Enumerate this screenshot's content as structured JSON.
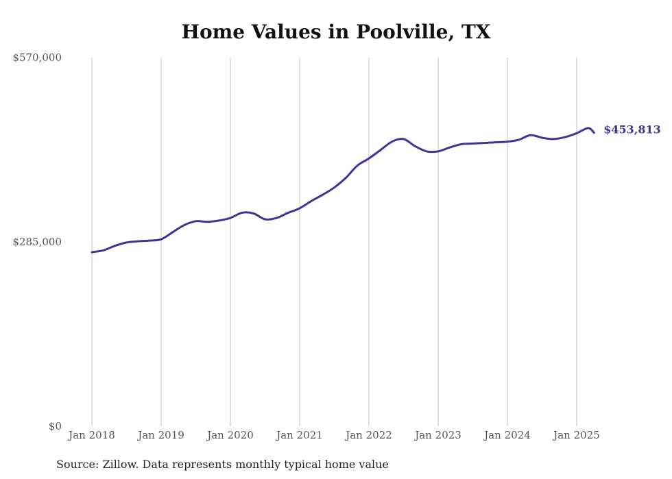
{
  "chart_data": {
    "type": "line",
    "title": "Home Values in Poolville, TX",
    "source": "Source: Zillow. Data represents monthly typical home value",
    "xlabel": "",
    "ylabel": "",
    "ylim": [
      0,
      570000
    ],
    "yticks": [
      {
        "value": 0,
        "label": "$0"
      },
      {
        "value": 285000,
        "label": "$285,000"
      },
      {
        "value": 570000,
        "label": "$570,000"
      }
    ],
    "xticks": [
      {
        "value": "2018-01",
        "label": "Jan 2018"
      },
      {
        "value": "2019-01",
        "label": "Jan 2019"
      },
      {
        "value": "2020-01",
        "label": "Jan 2020"
      },
      {
        "value": "2021-01",
        "label": "Jan 2021"
      },
      {
        "value": "2022-01",
        "label": "Jan 2022"
      },
      {
        "value": "2023-01",
        "label": "Jan 2023"
      },
      {
        "value": "2024-01",
        "label": "Jan 2024"
      },
      {
        "value": "2025-01",
        "label": "Jan 2025"
      }
    ],
    "grid": {
      "vertical": true,
      "horizontal": false
    },
    "line_color": "#3d3595",
    "end_label": "$453,813",
    "series": [
      {
        "x": [
          "2018-01",
          "2018-03",
          "2018-05",
          "2018-07",
          "2018-09",
          "2018-11",
          "2019-01",
          "2019-03",
          "2019-05",
          "2019-07",
          "2019-09",
          "2019-11",
          "2020-01",
          "2020-03",
          "2020-05",
          "2020-07",
          "2020-09",
          "2020-11",
          "2021-01",
          "2021-03",
          "2021-05",
          "2021-07",
          "2021-09",
          "2021-11",
          "2022-01",
          "2022-03",
          "2022-05",
          "2022-07",
          "2022-09",
          "2022-11",
          "2023-01",
          "2023-03",
          "2023-05",
          "2023-07",
          "2023-09",
          "2023-11",
          "2024-01",
          "2024-03",
          "2024-05",
          "2024-07",
          "2024-09",
          "2024-11",
          "2025-01",
          "2025-03",
          "2025-04"
        ],
        "values": [
          269000,
          272000,
          279000,
          284000,
          286000,
          287000,
          289000,
          300000,
          311000,
          317000,
          316000,
          318000,
          322000,
          330000,
          329000,
          320000,
          322000,
          330000,
          337000,
          348000,
          358000,
          369000,
          384000,
          403000,
          414000,
          427000,
          440000,
          444000,
          433000,
          425000,
          425000,
          431000,
          436000,
          437000,
          438000,
          439000,
          440000,
          443000,
          450000,
          446000,
          444000,
          447000,
          453000,
          461000,
          453813
        ]
      }
    ]
  }
}
